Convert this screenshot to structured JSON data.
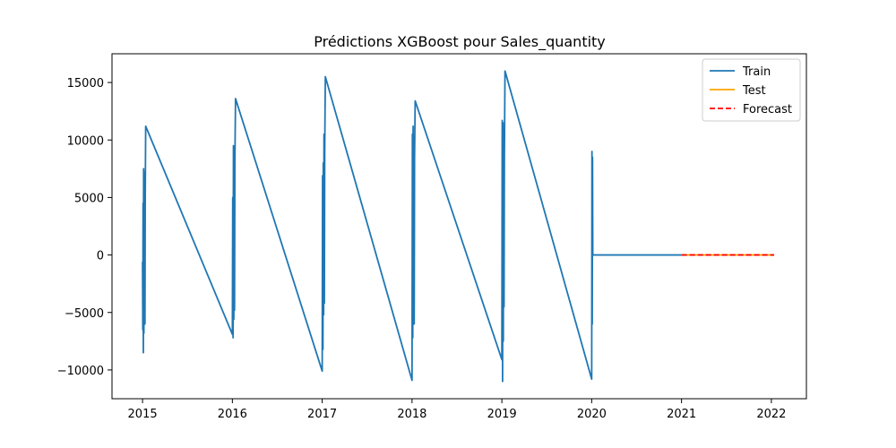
{
  "chart_data": {
    "type": "line",
    "title": "Prédictions XGBoost pour Sales_quantity",
    "xlabel": "",
    "ylabel": "",
    "xlim": [
      2014.66,
      2022.39
    ],
    "ylim": [
      -12500,
      17500
    ],
    "x_ticks": [
      {
        "value": 2015,
        "label": "2015"
      },
      {
        "value": 2016,
        "label": "2016"
      },
      {
        "value": 2017,
        "label": "2017"
      },
      {
        "value": 2018,
        "label": "2018"
      },
      {
        "value": 2019,
        "label": "2019"
      },
      {
        "value": 2020,
        "label": "2020"
      },
      {
        "value": 2021,
        "label": "2021"
      },
      {
        "value": 2022,
        "label": "2022"
      }
    ],
    "y_ticks": [
      {
        "value": -10000,
        "label": "−10000"
      },
      {
        "value": -5000,
        "label": "−5000"
      },
      {
        "value": 0,
        "label": "0"
      },
      {
        "value": 5000,
        "label": "5000"
      },
      {
        "value": 10000,
        "label": "10000"
      },
      {
        "value": 15000,
        "label": "15000"
      }
    ],
    "grid": false,
    "legend_position": "top-right",
    "series": [
      {
        "name": "Train",
        "color": "#1f77b4",
        "dash": "solid",
        "x": [
          2015.0,
          2015.003,
          2015.006,
          2015.009,
          2015.012,
          2015.015,
          2015.018,
          2015.021,
          2015.024,
          2015.027,
          2015.03,
          2015.035,
          2016.0,
          2016.004,
          2016.008,
          2016.012,
          2016.016,
          2016.02,
          2016.024,
          2016.028,
          2016.035,
          2017.0,
          2017.004,
          2017.008,
          2017.012,
          2017.016,
          2017.02,
          2017.024,
          2017.028,
          2017.035,
          2018.0,
          2018.004,
          2018.008,
          2018.012,
          2018.016,
          2018.02,
          2018.024,
          2018.028,
          2018.035,
          2019.0,
          2019.004,
          2019.008,
          2019.012,
          2019.016,
          2019.02,
          2019.024,
          2019.028,
          2019.035,
          2020.0,
          2020.003,
          2020.006,
          2020.009,
          2020.012,
          2020.015,
          2021.0
        ],
        "y": [
          -600,
          -6500,
          4500,
          -8500,
          7500,
          -6800,
          6000,
          -5200,
          7200,
          -6000,
          5000,
          11200,
          -6900,
          5000,
          -7200,
          9500,
          -5600,
          6500,
          -4800,
          8000,
          13600,
          -10100,
          6900,
          -8200,
          8000,
          -5200,
          10500,
          -4200,
          9000,
          15500,
          -10900,
          10500,
          -7200,
          11200,
          -2800,
          9000,
          -6000,
          8500,
          13400,
          -9100,
          11700,
          -11000,
          11500,
          -7500,
          9500,
          -4500,
          8500,
          16000,
          -10800,
          9000,
          -6000,
          8500,
          0,
          0,
          0
        ]
      },
      {
        "name": "Test",
        "color": "#ffa500",
        "dash": "solid",
        "x": [
          2021.0,
          2022.03
        ],
        "y": [
          0,
          0
        ]
      },
      {
        "name": "Forecast",
        "color": "#ff0000",
        "dash": "dashed",
        "x": [
          2021.0,
          2022.03
        ],
        "y": [
          0,
          0
        ]
      }
    ]
  }
}
